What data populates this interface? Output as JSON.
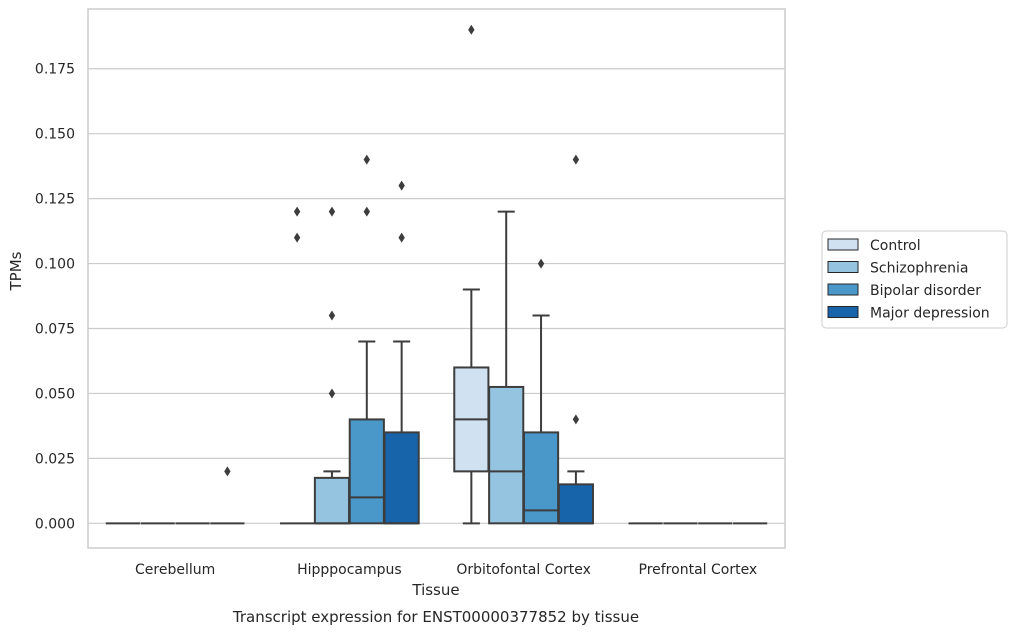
{
  "chart_data": {
    "type": "box",
    "title": "Transcript expression for ENST00000377852 by tissue",
    "xlabel": "Tissue",
    "ylabel": "TPMs",
    "ylim": [
      -0.0095,
      0.198
    ],
    "yticks": [
      "0.000",
      "0.025",
      "0.050",
      "0.075",
      "0.100",
      "0.125",
      "0.150",
      "0.175"
    ],
    "grid": "horizontal",
    "legend_position": "right",
    "categories": [
      "Cerebellum",
      "Hipppocampus",
      "Orbitofontal Cortex",
      "Prefrontal Cortex"
    ],
    "series": [
      {
        "name": "Control",
        "color": "#d0e1f2",
        "boxes": [
          {
            "q1": 0,
            "median": 0,
            "q3": 0,
            "whisker_low": 0,
            "whisker_high": 0,
            "outliers": []
          },
          {
            "q1": 0,
            "median": 0,
            "q3": 0,
            "whisker_low": 0,
            "whisker_high": 0,
            "outliers": [
              0.11,
              0.12
            ]
          },
          {
            "q1": 0.02,
            "median": 0.04,
            "q3": 0.06,
            "whisker_low": 0,
            "whisker_high": 0.09,
            "outliers": [
              0.19
            ]
          },
          {
            "q1": 0,
            "median": 0,
            "q3": 0,
            "whisker_low": 0,
            "whisker_high": 0,
            "outliers": []
          }
        ]
      },
      {
        "name": "Schizophrenia",
        "color": "#94c4df",
        "boxes": [
          {
            "q1": 0,
            "median": 0,
            "q3": 0,
            "whisker_low": 0,
            "whisker_high": 0,
            "outliers": []
          },
          {
            "q1": 0,
            "median": 0,
            "q3": 0.0175,
            "whisker_low": 0,
            "whisker_high": 0.02,
            "outliers": [
              0.05,
              0.08,
              0.12
            ]
          },
          {
            "q1": 0,
            "median": 0.02,
            "q3": 0.0525,
            "whisker_low": 0,
            "whisker_high": 0.12,
            "outliers": []
          },
          {
            "q1": 0,
            "median": 0,
            "q3": 0,
            "whisker_low": 0,
            "whisker_high": 0,
            "outliers": []
          }
        ]
      },
      {
        "name": "Bipolar disorder",
        "color": "#4a98c9",
        "boxes": [
          {
            "q1": 0,
            "median": 0,
            "q3": 0,
            "whisker_low": 0,
            "whisker_high": 0,
            "outliers": []
          },
          {
            "q1": 0,
            "median": 0.01,
            "q3": 0.04,
            "whisker_low": 0,
            "whisker_high": 0.07,
            "outliers": [
              0.12,
              0.14
            ]
          },
          {
            "q1": 0,
            "median": 0.005,
            "q3": 0.035,
            "whisker_low": 0,
            "whisker_high": 0.08,
            "outliers": [
              0.1
            ]
          },
          {
            "q1": 0,
            "median": 0,
            "q3": 0,
            "whisker_low": 0,
            "whisker_high": 0,
            "outliers": []
          }
        ]
      },
      {
        "name": "Major depression",
        "color": "#1764ab",
        "boxes": [
          {
            "q1": 0,
            "median": 0,
            "q3": 0,
            "whisker_low": 0,
            "whisker_high": 0,
            "outliers": [
              0.02
            ]
          },
          {
            "q1": 0,
            "median": 0,
            "q3": 0.035,
            "whisker_low": 0,
            "whisker_high": 0.07,
            "outliers": [
              0.11,
              0.13
            ]
          },
          {
            "q1": 0,
            "median": 0,
            "q3": 0.015,
            "whisker_low": 0,
            "whisker_high": 0.02,
            "outliers": [
              0.04,
              0.14
            ]
          },
          {
            "q1": 0,
            "median": 0,
            "q3": 0,
            "whisker_low": 0,
            "whisker_high": 0,
            "outliers": []
          }
        ]
      }
    ],
    "colors": {
      "grid": "#cccccc",
      "frame": "#cccccc",
      "box_edge": "#3d3d3d"
    }
  }
}
